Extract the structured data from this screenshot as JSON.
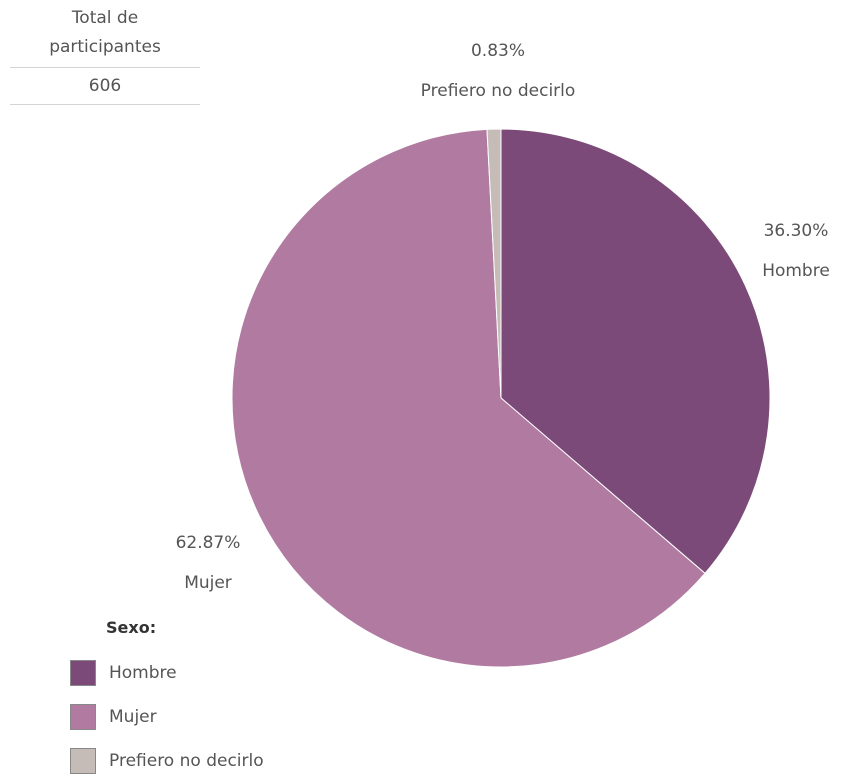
{
  "summary": {
    "label_line1": "Total de",
    "label_line2": "participantes",
    "value": "606"
  },
  "chart_data": {
    "type": "pie",
    "categories": [
      "Hombre",
      "Mujer",
      "Prefiero no decirlo"
    ],
    "values": [
      36.3,
      62.87,
      0.83
    ],
    "value_labels": [
      "36.30%",
      "62.87%",
      "0.83%"
    ],
    "colors": [
      "#7b4a78",
      "#b07aa1",
      "#c5bcb8"
    ],
    "start_angle_deg": 0,
    "direction": "clockwise"
  },
  "legend": {
    "title": "Sexo:",
    "items": [
      {
        "label": "Hombre",
        "color": "#7b4a78"
      },
      {
        "label": "Mujer",
        "color": "#b07aa1"
      },
      {
        "label": "Prefiero no decirlo",
        "color": "#c5bcb8"
      }
    ]
  }
}
